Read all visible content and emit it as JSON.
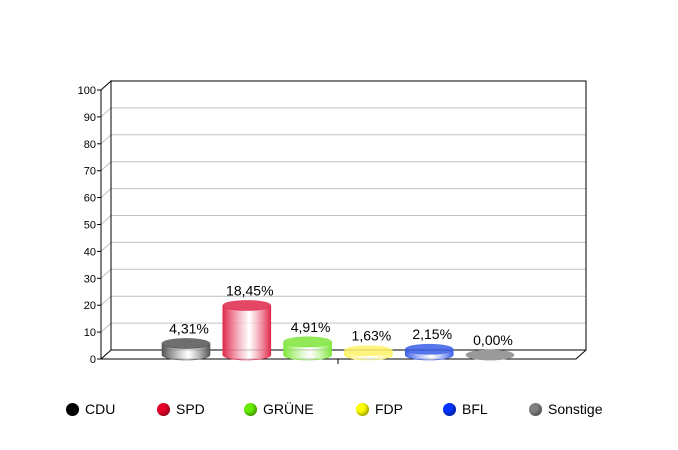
{
  "chart_data": {
    "type": "bar",
    "title": "",
    "xlabel": "",
    "ylabel": "",
    "ylim": [
      0,
      100
    ],
    "yticks": [
      "0",
      "10",
      "20",
      "30",
      "40",
      "50",
      "60",
      "70",
      "80",
      "90",
      "100"
    ],
    "categories": [
      "CDU",
      "SPD",
      "GRÜNE",
      "FDP",
      "BFL",
      "Sonstige"
    ],
    "values": [
      4.31,
      18.45,
      4.91,
      1.63,
      2.15,
      0.0
    ],
    "labels": [
      "4,31%",
      "18,45%",
      "4,91%",
      "1,63%",
      "2,15%",
      "0,00%"
    ],
    "colors": [
      "#555555",
      "#e0284a",
      "#7ee63a",
      "#fff36a",
      "#3b5fe8",
      "#9a9a9a"
    ],
    "legend_colors": [
      "#000000",
      "#e8002a",
      "#66ee00",
      "#ffff00",
      "#0033ff",
      "#808080"
    ],
    "grid": true,
    "legend_position": "bottom"
  }
}
